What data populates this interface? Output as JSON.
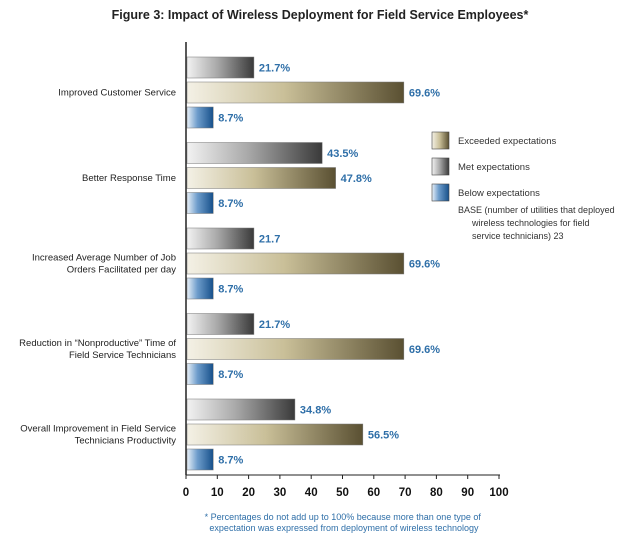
{
  "chart_data": {
    "type": "bar",
    "orientation": "horizontal",
    "title": "Figure 3: Impact of Wireless Deployment for Field Service Employees*",
    "categories": [
      [
        "Improved Customer Service"
      ],
      [
        "Better Response Time"
      ],
      [
        "Increased Average Number of Job",
        "Orders Facilitated per day"
      ],
      [
        "Reduction in “Nonproductive” Time of",
        "Field Service Technicians"
      ],
      [
        "Overall Improvement in Field Service",
        "Technicians Productivity"
      ]
    ],
    "series": [
      {
        "name": "Met expectations",
        "color": "#555555",
        "values": [
          21.7,
          43.5,
          21.7,
          21.7,
          34.8
        ],
        "labels": [
          "21.7%",
          "43.5%",
          "21.7",
          "21.7%",
          "34.8%"
        ]
      },
      {
        "name": "Exceeded expectations",
        "color": "#6b6040",
        "values": [
          69.6,
          47.8,
          69.6,
          69.6,
          56.5
        ],
        "labels": [
          "69.6%",
          "47.8%",
          "69.6%",
          "69.6%",
          "56.5%"
        ]
      },
      {
        "name": "Below expectations",
        "color": "#1f5f9e",
        "values": [
          8.7,
          8.7,
          8.7,
          8.7,
          8.7
        ],
        "labels": [
          "8.7%",
          "8.7%",
          "8.7%",
          "8.7%",
          "8.7%"
        ]
      }
    ],
    "legend_order": [
      "Exceeded expectations",
      "Met expectations",
      "Below expectations"
    ],
    "legend_position": "right",
    "xlim": [
      0,
      100
    ],
    "xticks": [
      "0",
      "10",
      "20",
      "30",
      "40",
      "50",
      "60",
      "70",
      "80",
      "90",
      "100"
    ],
    "grid": false,
    "base_note": [
      "BASE (number of utilities that deployed",
      "wireless technologies for field",
      "service technicians) 23"
    ],
    "footnote": [
      "* Percentages do not add up to 100% because more than one type of",
      "expectation was expressed from deployment of wireless technology"
    ]
  }
}
